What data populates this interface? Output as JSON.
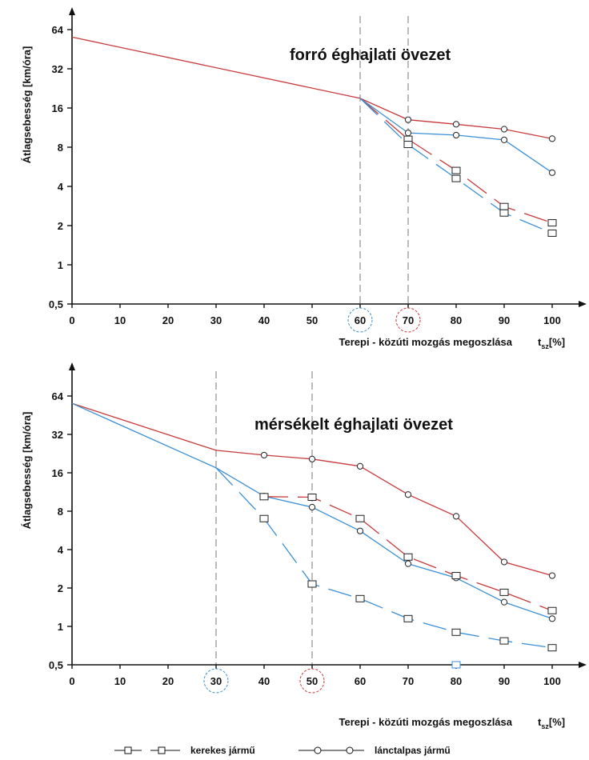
{
  "legend": {
    "wheeled_label": "kerekes jármű",
    "tracked_label": "lánctalpas jármű"
  },
  "colors": {
    "red": "#c8393b",
    "blue": "#3b8fd6",
    "axis": "#111111",
    "guide": "#777777"
  },
  "chart_data": [
    {
      "type": "line",
      "title": "forró éghajlati övezet",
      "ylabel": "Átlagsebesség [km/óra]",
      "xlabel": "Terepi - közúti mozgás megoszlása",
      "xlabel_symbol": "t",
      "xlabel_sub": "sz",
      "xlabel_unit": "[%]",
      "y_scale": "log2",
      "ylim": [
        0.5,
        80
      ],
      "xlim": [
        0,
        100
      ],
      "y_ticks": [
        0.5,
        1,
        2,
        4,
        8,
        16,
        32,
        64
      ],
      "y_tick_labels": [
        "0,5",
        "1",
        "2",
        "4",
        "8",
        "16",
        "32",
        "64"
      ],
      "x_ticks": [
        0,
        10,
        20,
        30,
        40,
        50,
        60,
        70,
        80,
        90,
        100
      ],
      "guide_lines": [
        60,
        70
      ],
      "circled_ticks": [
        {
          "x": 60,
          "color": "blue"
        },
        {
          "x": 70,
          "color": "red"
        }
      ],
      "series": [
        {
          "color": "red",
          "dash": false,
          "marker": "none",
          "x": [
            0,
            60
          ],
          "y": [
            56,
            19
          ]
        },
        {
          "color": "red",
          "dash": false,
          "marker": "circle",
          "x": [
            60,
            70,
            80,
            90,
            100
          ],
          "y": [
            19,
            13,
            12,
            11,
            9.3
          ]
        },
        {
          "color": "blue",
          "dash": false,
          "marker": "circle",
          "x": [
            60,
            70,
            80,
            90,
            100
          ],
          "y": [
            19,
            10.3,
            9.9,
            9.1,
            5.1
          ]
        },
        {
          "color": "red",
          "dash": true,
          "marker": "square",
          "x": [
            60,
            70,
            80,
            90,
            100
          ],
          "y": [
            19,
            9.2,
            5.3,
            2.8,
            2.1
          ]
        },
        {
          "color": "blue",
          "dash": true,
          "marker": "square",
          "x": [
            60,
            70,
            80,
            90,
            100
          ],
          "y": [
            19,
            8.4,
            4.6,
            2.5,
            1.75
          ]
        }
      ]
    },
    {
      "type": "line",
      "title": "mérsékelt éghajlati övezet",
      "ylabel": "Átlagsebesség [km/óra]",
      "xlabel": "Terepi - közúti mozgás megoszlása",
      "xlabel_symbol": "t",
      "xlabel_sub": "sz",
      "xlabel_unit": "[%]",
      "y_scale": "log2",
      "ylim": [
        0.5,
        80
      ],
      "xlim": [
        0,
        100
      ],
      "y_ticks": [
        0.5,
        1,
        2,
        4,
        8,
        16,
        32,
        64
      ],
      "y_tick_labels": [
        "0,5",
        "1",
        "2",
        "4",
        "8",
        "16",
        "32",
        "64"
      ],
      "x_ticks": [
        0,
        10,
        20,
        30,
        40,
        50,
        60,
        70,
        80,
        90,
        100
      ],
      "guide_lines": [
        30,
        50
      ],
      "circled_ticks": [
        {
          "x": 30,
          "color": "blue"
        },
        {
          "x": 50,
          "color": "red"
        }
      ],
      "series": [
        {
          "color": "red",
          "dash": false,
          "marker": "none",
          "x": [
            0,
            30
          ],
          "y": [
            56,
            24
          ]
        },
        {
          "color": "blue",
          "dash": false,
          "marker": "none",
          "x": [
            0,
            30
          ],
          "y": [
            56,
            17.5
          ]
        },
        {
          "color": "red",
          "dash": false,
          "marker": "circle",
          "x": [
            30,
            40,
            50,
            60,
            70,
            80,
            90,
            100
          ],
          "y": [
            24,
            22,
            20.5,
            18,
            10.8,
            7.3,
            3.2,
            2.5
          ]
        },
        {
          "color": "blue",
          "dash": false,
          "marker": "circle",
          "x": [
            30,
            40,
            50,
            60,
            70,
            80,
            90,
            100
          ],
          "y": [
            17.5,
            10.5,
            8.6,
            5.6,
            3.1,
            2.4,
            1.55,
            1.15
          ]
        },
        {
          "color": "red",
          "dash": true,
          "marker": "square",
          "x": [
            40,
            50,
            60,
            70,
            80,
            90,
            100
          ],
          "y": [
            10.4,
            10.3,
            7,
            3.5,
            2.5,
            1.85,
            1.33
          ]
        },
        {
          "color": "blue",
          "dash": true,
          "marker": "square",
          "x": [
            30,
            40,
            50,
            60,
            70,
            80,
            90,
            100
          ],
          "y": [
            17.5,
            7,
            2.15,
            1.65,
            1.15,
            0.9,
            0.77,
            0.68
          ]
        },
        {
          "color": "blue",
          "dash": false,
          "marker": "square",
          "x": [
            80
          ],
          "y": [
            0.5
          ]
        }
      ]
    }
  ]
}
